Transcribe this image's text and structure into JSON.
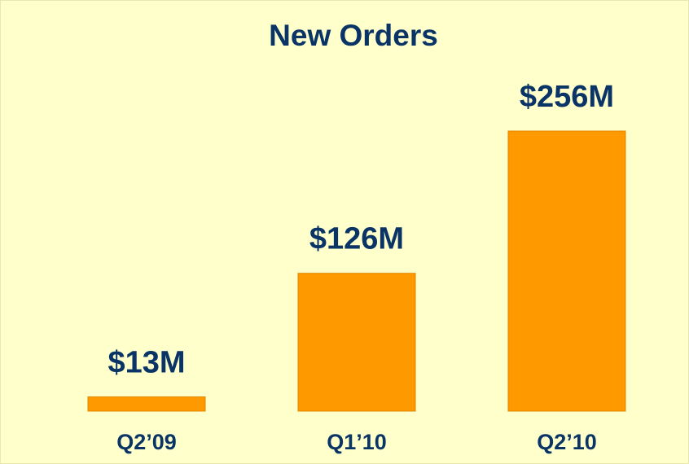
{
  "chart_data": {
    "type": "bar",
    "title": "New Orders",
    "categories": [
      "Q2’09",
      "Q1’10",
      "Q2’10"
    ],
    "values": [
      13,
      126,
      256
    ],
    "value_labels": [
      "$13M",
      "$126M",
      "$256M"
    ],
    "color": "#ff9900"
  }
}
